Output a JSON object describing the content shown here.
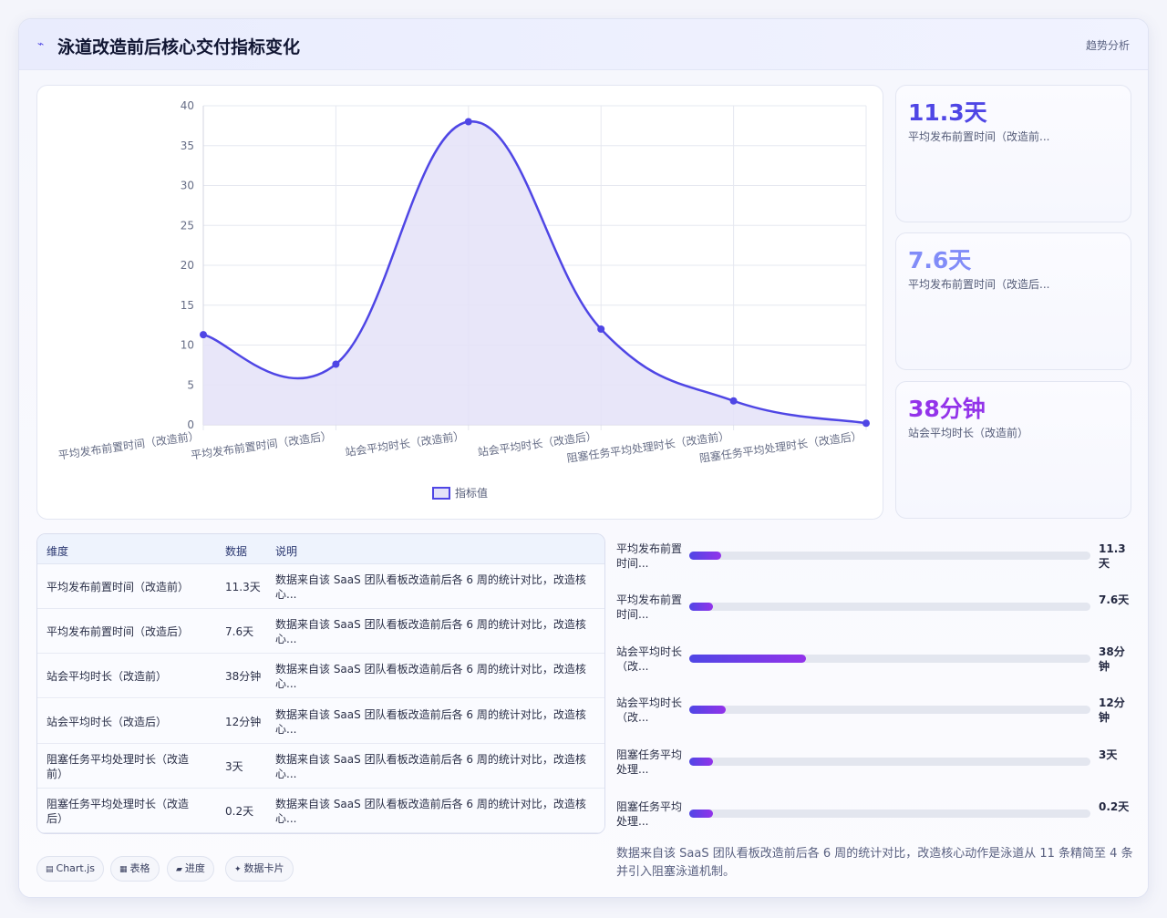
{
  "header": {
    "icon": "trend-icon",
    "title": "泳道改造前后核心交付指标变化",
    "tag": "趋势分析"
  },
  "chart_data": {
    "type": "line",
    "categories": [
      "平均发布前置时间（改造前）",
      "平均发布前置时间（改造后）",
      "站会平均时长（改造前）",
      "站会平均时长（改造后）",
      "阻塞任务平均处理时长（改造前）",
      "阻塞任务平均处理时长（改造后）"
    ],
    "series": [
      {
        "name": "指标值",
        "values": [
          11.3,
          7.6,
          38,
          12,
          3,
          0.2
        ]
      }
    ],
    "ylim": [
      0,
      40
    ],
    "yticks": [
      0,
      5,
      10,
      15,
      20,
      25,
      30,
      35,
      40
    ],
    "legend": "bottom",
    "grid": true,
    "fill": true,
    "colors": {
      "line": "#4f46e5",
      "fill": "#e4e2f8"
    }
  },
  "stats": [
    {
      "value": "11.3天",
      "label": "平均发布前置时间（改造前...",
      "color": "#4f46e5"
    },
    {
      "value": "7.6天",
      "label": "平均发布前置时间（改造后...",
      "color": "#818cf8"
    },
    {
      "value": "38分钟",
      "label": "站会平均时长（改造前）",
      "color": "#9333ea"
    }
  ],
  "table": {
    "headers": [
      "维度",
      "数据",
      "说明"
    ],
    "rows": [
      {
        "dim": "平均发布前置时间（改造前）",
        "data": "11.3天",
        "desc": "数据来自该 SaaS 团队看板改造前后各 6 周的统计对比，改造核心..."
      },
      {
        "dim": "平均发布前置时间（改造后）",
        "data": "7.6天",
        "desc": "数据来自该 SaaS 团队看板改造前后各 6 周的统计对比，改造核心..."
      },
      {
        "dim": "站会平均时长（改造前）",
        "data": "38分钟",
        "desc": "数据来自该 SaaS 团队看板改造前后各 6 周的统计对比，改造核心..."
      },
      {
        "dim": "站会平均时长（改造后）",
        "data": "12分钟",
        "desc": "数据来自该 SaaS 团队看板改造前后各 6 周的统计对比，改造核心..."
      },
      {
        "dim": "阻塞任务平均处理时长（改造前）",
        "data": "3天",
        "desc": "数据来自该 SaaS 团队看板改造前后各 6 周的统计对比，改造核心..."
      },
      {
        "dim": "阻塞任务平均处理时长（改造后）",
        "data": "0.2天",
        "desc": "数据来自该 SaaS 团队看板改造前后各 6 周的统计对比，改造核心..."
      }
    ]
  },
  "progress": [
    {
      "label": "平均发布前置时间...",
      "value": "11.3天",
      "fraction": 0.08
    },
    {
      "label": "平均发布前置时间...",
      "value": "7.6天",
      "fraction": 0.06
    },
    {
      "label": "站会平均时长（改...",
      "value": "38分钟",
      "fraction": 0.29
    },
    {
      "label": "站会平均时长（改...",
      "value": "12分钟",
      "fraction": 0.09
    },
    {
      "label": "阻塞任务平均处理...",
      "value": "3天",
      "fraction": 0.06
    },
    {
      "label": "阻塞任务平均处理...",
      "value": "0.2天",
      "fraction": 0.06
    }
  ],
  "note": "数据来自该 SaaS 团队看板改造前后各 6 周的统计对比，改造核心动作是泳道从 11 条精简至 4 条并引入阻塞泳道机制。",
  "footer_tags": [
    {
      "icon": "chart-icon",
      "glyph": "▤",
      "label": "Chart.js"
    },
    {
      "icon": "table-icon",
      "glyph": "▦",
      "label": "表格"
    },
    {
      "icon": "progress-icon",
      "glyph": "▰",
      "label": "进度"
    },
    {
      "icon": "card-icon",
      "glyph": "✦",
      "label": "数据卡片"
    }
  ]
}
